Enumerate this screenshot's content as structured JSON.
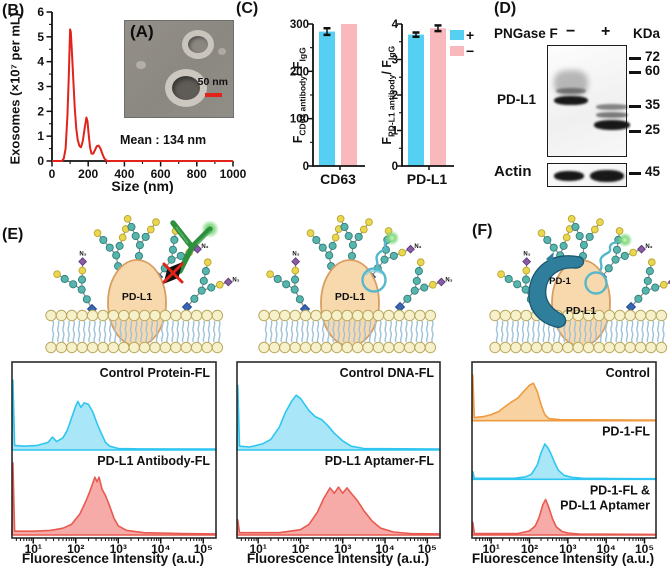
{
  "panels": {
    "B": {
      "label": "(B)",
      "inset_label": "(A)",
      "scale_bar": "50 nm",
      "mean": "Mean : 134 nm"
    },
    "C": {
      "label": "(C)",
      "legend": [
        {
          "symbol": "+",
          "color": "#55D0F2"
        },
        {
          "symbol": "−",
          "color": "#F9B8BC"
        }
      ],
      "left_ylabel": {
        "pre": "F",
        "sub1": "CD63 antibody",
        "mid": "/ F",
        "sub2": "IgG"
      },
      "right_ylabel": {
        "pre": "F",
        "sub1": "PD-L1 antibody",
        "mid": "/ F",
        "sub2": "IgG"
      }
    },
    "D": {
      "label": "(D)",
      "header": "PNGase F",
      "lane_minus": "−",
      "lane_plus": "+",
      "kda": "KDa",
      "protein": "PD-L1",
      "loading": "Actin",
      "markers": [
        "72",
        "60",
        "35",
        "25"
      ],
      "actin_marker": "45"
    },
    "E": {
      "label": "(E)"
    },
    "F": {
      "label": "(F)"
    },
    "schematics": {
      "pdl1": "PD-L1",
      "pd1": "PD-1",
      "n3": "N₃"
    }
  },
  "chart_data": [
    {
      "id": "size_dist",
      "type": "line",
      "xlabel": "Size (nm)",
      "ylabel": "Exosomes (×10⁷ per mL)",
      "xlim": [
        0,
        1000
      ],
      "ylim": [
        0,
        6
      ],
      "xticks": [
        0,
        200,
        400,
        600,
        800,
        1000
      ],
      "yticks": [
        0,
        1,
        2,
        3,
        4,
        5,
        6
      ],
      "color": "#E2231A",
      "points": [
        [
          0,
          0
        ],
        [
          55,
          0
        ],
        [
          65,
          0.1
        ],
        [
          75,
          0.5
        ],
        [
          85,
          1.8
        ],
        [
          92,
          3.3
        ],
        [
          100,
          5.3
        ],
        [
          104,
          5.2
        ],
        [
          110,
          4.4
        ],
        [
          118,
          3.2
        ],
        [
          126,
          2.1
        ],
        [
          134,
          1.3
        ],
        [
          142,
          0.85
        ],
        [
          152,
          0.6
        ],
        [
          160,
          0.55
        ],
        [
          170,
          0.8
        ],
        [
          180,
          1.3
        ],
        [
          190,
          1.75
        ],
        [
          196,
          1.6
        ],
        [
          202,
          1.1
        ],
        [
          210,
          0.55
        ],
        [
          218,
          0.3
        ],
        [
          228,
          0.3
        ],
        [
          238,
          0.45
        ],
        [
          248,
          0.6
        ],
        [
          258,
          0.62
        ],
        [
          268,
          0.5
        ],
        [
          278,
          0.3
        ],
        [
          288,
          0.12
        ],
        [
          298,
          0.03
        ],
        [
          310,
          0
        ],
        [
          1000,
          0
        ]
      ]
    },
    {
      "id": "cd63_bar",
      "type": "bar",
      "category": "CD63",
      "ylim": [
        0,
        300
      ],
      "yticks": [
        0,
        100,
        200,
        300
      ],
      "series": [
        {
          "name": "+",
          "value": 284,
          "err": 7,
          "color": "#55D0F2"
        },
        {
          "name": "−",
          "value": 300,
          "err": 0,
          "color": "#F9B8BC"
        }
      ]
    },
    {
      "id": "pdl1_bar",
      "type": "bar",
      "category": "PD-L1",
      "ylim": [
        0,
        4
      ],
      "yticks": [
        0,
        1,
        2,
        3,
        4
      ],
      "series": [
        {
          "name": "+",
          "value": 3.7,
          "err": 0.06,
          "color": "#55D0F2"
        },
        {
          "name": "−",
          "value": 3.88,
          "err": 0.08,
          "color": "#F9B8BC"
        }
      ]
    },
    {
      "id": "flow_e_left",
      "type": "area",
      "xlabel": "Fluorescence Intensity (a.u.)",
      "xticks": [
        "10¹",
        "10²",
        "10³",
        "10⁴",
        "10⁵"
      ],
      "xlog_range": [
        0.5,
        5.3
      ],
      "series": [
        {
          "name": "Control Protein-FL",
          "fill": "#A9E7F8",
          "stroke": "#2EC6F0",
          "points": [
            [
              0.5,
              0
            ],
            [
              0.52,
              0.92
            ],
            [
              0.56,
              0.06
            ],
            [
              0.8,
              0.05
            ],
            [
              1.1,
              0.06
            ],
            [
              1.35,
              0.1
            ],
            [
              1.45,
              0.17
            ],
            [
              1.55,
              0.11
            ],
            [
              1.7,
              0.16
            ],
            [
              1.8,
              0.26
            ],
            [
              1.9,
              0.42
            ],
            [
              2.0,
              0.58
            ],
            [
              2.05,
              0.64
            ],
            [
              2.12,
              0.56
            ],
            [
              2.2,
              0.62
            ],
            [
              2.3,
              0.6
            ],
            [
              2.4,
              0.5
            ],
            [
              2.5,
              0.35
            ],
            [
              2.6,
              0.22
            ],
            [
              2.7,
              0.1
            ],
            [
              2.8,
              0.05
            ],
            [
              3.0,
              0.02
            ],
            [
              3.5,
              0.015
            ],
            [
              5.3,
              0.012
            ]
          ]
        },
        {
          "name": "PD-L1 Antibody-FL",
          "fill": "#F7ABA8",
          "stroke": "#E85A50",
          "points": [
            [
              0.5,
              0
            ],
            [
              0.52,
              0.95
            ],
            [
              0.56,
              0.05
            ],
            [
              1.0,
              0.05
            ],
            [
              1.4,
              0.06
            ],
            [
              1.7,
              0.09
            ],
            [
              1.9,
              0.14
            ],
            [
              2.1,
              0.28
            ],
            [
              2.25,
              0.46
            ],
            [
              2.35,
              0.6
            ],
            [
              2.45,
              0.76
            ],
            [
              2.5,
              0.7
            ],
            [
              2.55,
              0.76
            ],
            [
              2.62,
              0.6
            ],
            [
              2.7,
              0.52
            ],
            [
              2.8,
              0.38
            ],
            [
              2.9,
              0.22
            ],
            [
              3.0,
              0.12
            ],
            [
              3.2,
              0.06
            ],
            [
              3.6,
              0.03
            ],
            [
              4.5,
              0.02
            ],
            [
              5.3,
              0.015
            ]
          ]
        }
      ]
    },
    {
      "id": "flow_e_right",
      "type": "area",
      "xlabel": "Fluorescence Intensity (a.u.)",
      "xticks": [
        "10¹",
        "10²",
        "10³",
        "10⁴",
        "10⁵"
      ],
      "xlog_range": [
        0.5,
        5.3
      ],
      "series": [
        {
          "name": "Control DNA-FL",
          "fill": "#A9E7F8",
          "stroke": "#2EC6F0",
          "points": [
            [
              0.5,
              0
            ],
            [
              0.52,
              0.85
            ],
            [
              0.56,
              0.05
            ],
            [
              0.8,
              0.04
            ],
            [
              1.1,
              0.08
            ],
            [
              1.3,
              0.14
            ],
            [
              1.5,
              0.3
            ],
            [
              1.65,
              0.5
            ],
            [
              1.8,
              0.65
            ],
            [
              1.9,
              0.72
            ],
            [
              2.0,
              0.68
            ],
            [
              2.1,
              0.6
            ],
            [
              2.2,
              0.52
            ],
            [
              2.35,
              0.44
            ],
            [
              2.5,
              0.4
            ],
            [
              2.65,
              0.32
            ],
            [
              2.8,
              0.22
            ],
            [
              3.0,
              0.12
            ],
            [
              3.2,
              0.05
            ],
            [
              3.5,
              0.02
            ],
            [
              5.3,
              0.012
            ]
          ]
        },
        {
          "name": "PD-L1 Aptamer-FL",
          "fill": "#F7ABA8",
          "stroke": "#E85A50",
          "points": [
            [
              0.5,
              0
            ],
            [
              0.52,
              0.2
            ],
            [
              0.56,
              0.03
            ],
            [
              1.5,
              0.03
            ],
            [
              2.0,
              0.07
            ],
            [
              2.2,
              0.14
            ],
            [
              2.4,
              0.3
            ],
            [
              2.55,
              0.48
            ],
            [
              2.7,
              0.62
            ],
            [
              2.8,
              0.55
            ],
            [
              2.9,
              0.63
            ],
            [
              3.0,
              0.55
            ],
            [
              3.1,
              0.62
            ],
            [
              3.2,
              0.55
            ],
            [
              3.35,
              0.45
            ],
            [
              3.5,
              0.32
            ],
            [
              3.7,
              0.18
            ],
            [
              3.9,
              0.09
            ],
            [
              4.2,
              0.04
            ],
            [
              4.6,
              0.02
            ],
            [
              5.3,
              0.015
            ]
          ]
        }
      ]
    },
    {
      "id": "flow_f",
      "type": "area",
      "xlabel": "Fluorescence Intensity (a.u.)",
      "xticks": [
        "10¹",
        "10²",
        "10³",
        "10⁴",
        "10⁵"
      ],
      "xlog_range": [
        0.5,
        5.3
      ],
      "series": [
        {
          "name": "Control",
          "fill": "#F8D2A0",
          "stroke": "#F09A40",
          "points": [
            [
              0.5,
              0
            ],
            [
              0.52,
              0.9
            ],
            [
              0.56,
              0.06
            ],
            [
              0.8,
              0.08
            ],
            [
              1.0,
              0.12
            ],
            [
              1.2,
              0.18
            ],
            [
              1.4,
              0.3
            ],
            [
              1.55,
              0.38
            ],
            [
              1.7,
              0.45
            ],
            [
              1.85,
              0.58
            ],
            [
              2.0,
              0.7
            ],
            [
              2.1,
              0.74
            ],
            [
              2.2,
              0.58
            ],
            [
              2.3,
              0.32
            ],
            [
              2.4,
              0.12
            ],
            [
              2.5,
              0.04
            ],
            [
              2.8,
              0.02
            ],
            [
              5.3,
              0.012
            ]
          ]
        },
        {
          "name": "PD-1-FL",
          "fill": "#A9E7F8",
          "stroke": "#2EC6F0",
          "points": [
            [
              0.5,
              0
            ],
            [
              0.52,
              0.15
            ],
            [
              0.56,
              0.02
            ],
            [
              1.6,
              0.02
            ],
            [
              1.9,
              0.05
            ],
            [
              2.05,
              0.1
            ],
            [
              2.2,
              0.28
            ],
            [
              2.3,
              0.52
            ],
            [
              2.4,
              0.7
            ],
            [
              2.48,
              0.62
            ],
            [
              2.55,
              0.52
            ],
            [
              2.65,
              0.34
            ],
            [
              2.75,
              0.18
            ],
            [
              2.9,
              0.08
            ],
            [
              3.1,
              0.04
            ],
            [
              3.4,
              0.02
            ],
            [
              4.2,
              0.015
            ],
            [
              5.3,
              0.012
            ]
          ]
        },
        {
          "name": "PD-1-FL &\nPD-L1 Aptamer",
          "fill": "#F7ABA8",
          "stroke": "#E85A50",
          "points": [
            [
              0.5,
              0
            ],
            [
              0.52,
              0.25
            ],
            [
              0.56,
              0.03
            ],
            [
              1.7,
              0.03
            ],
            [
              2.0,
              0.08
            ],
            [
              2.15,
              0.18
            ],
            [
              2.25,
              0.35
            ],
            [
              2.35,
              0.6
            ],
            [
              2.42,
              0.7
            ],
            [
              2.5,
              0.55
            ],
            [
              2.6,
              0.32
            ],
            [
              2.7,
              0.16
            ],
            [
              2.85,
              0.07
            ],
            [
              3.0,
              0.04
            ],
            [
              3.3,
              0.02
            ],
            [
              5.3,
              0.012
            ]
          ]
        }
      ]
    }
  ]
}
